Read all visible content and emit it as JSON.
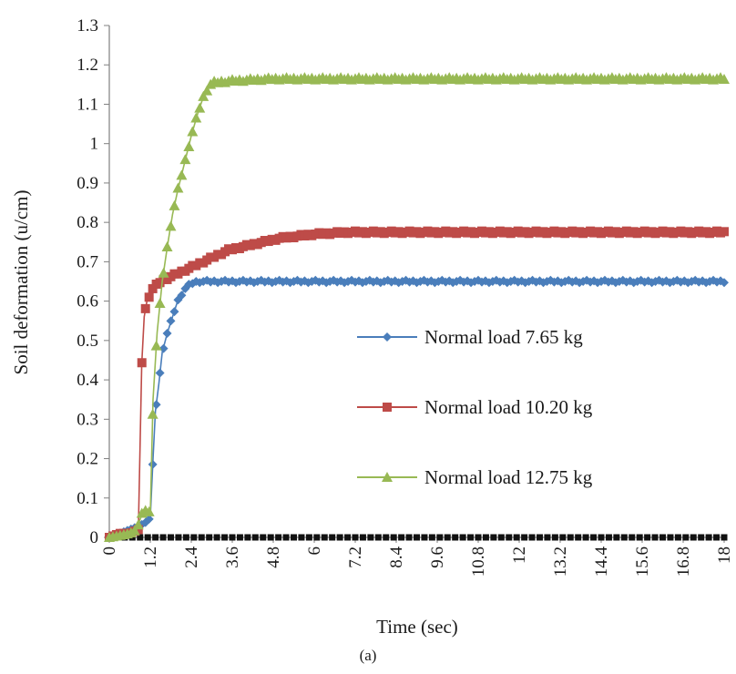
{
  "chart_data": {
    "type": "line",
    "title": "",
    "caption": "(a)",
    "xlabel": "Time (sec)",
    "ylabel": "Soil deformation (u/cm)",
    "xlim": [
      0,
      18
    ],
    "ylim": [
      0,
      1.3
    ],
    "x_ticks": [
      "0",
      "1.2",
      "2.4",
      "3.6",
      "4.8",
      "6",
      "7.2",
      "8.4",
      "9.6",
      "10.8",
      "12",
      "13.2",
      "14.4",
      "15.6",
      "16.8",
      "18"
    ],
    "y_ticks": [
      "0",
      "0.1",
      "0.2",
      "0.3",
      "0.4",
      "0.5",
      "0.6",
      "0.7",
      "0.8",
      "0.9",
      "1",
      "1.1",
      "1.2",
      "1.3"
    ],
    "grid": false,
    "legend_position": "center-right",
    "series": [
      {
        "name": "Normal load 7.65 kg",
        "color": "#4a7ebb",
        "marker": "diamond",
        "points": [
          [
            0,
            0
          ],
          [
            0.3,
            0.01
          ],
          [
            0.6,
            0.02
          ],
          [
            0.9,
            0.03
          ],
          [
            1.1,
            0.04
          ],
          [
            1.2,
            0.05
          ],
          [
            1.28,
            0.2
          ],
          [
            1.35,
            0.32
          ],
          [
            1.45,
            0.39
          ],
          [
            1.55,
            0.47
          ],
          [
            1.7,
            0.52
          ],
          [
            1.85,
            0.56
          ],
          [
            2.0,
            0.6
          ],
          [
            2.2,
            0.63
          ],
          [
            2.4,
            0.645
          ],
          [
            2.6,
            0.65
          ],
          [
            3.0,
            0.65
          ],
          [
            6.0,
            0.65
          ],
          [
            12.0,
            0.65
          ],
          [
            18.0,
            0.65
          ]
        ]
      },
      {
        "name": "Normal load 10.20 kg",
        "color": "#be4b48",
        "marker": "square",
        "points": [
          [
            0,
            0
          ],
          [
            0.3,
            0.01
          ],
          [
            0.6,
            0.01
          ],
          [
            0.85,
            0.02
          ],
          [
            0.95,
            0.44
          ],
          [
            1.02,
            0.56
          ],
          [
            1.1,
            0.6
          ],
          [
            1.25,
            0.63
          ],
          [
            1.5,
            0.65
          ],
          [
            2.0,
            0.67
          ],
          [
            2.5,
            0.69
          ],
          [
            3.0,
            0.71
          ],
          [
            3.5,
            0.73
          ],
          [
            4.0,
            0.74
          ],
          [
            4.5,
            0.75
          ],
          [
            5.0,
            0.76
          ],
          [
            5.5,
            0.765
          ],
          [
            6.0,
            0.77
          ],
          [
            7.0,
            0.775
          ],
          [
            18.0,
            0.775
          ]
        ]
      },
      {
        "name": "Normal load 12.75 kg",
        "color": "#98b954",
        "marker": "triangle",
        "points": [
          [
            0,
            0
          ],
          [
            0.3,
            0.005
          ],
          [
            0.6,
            0.01
          ],
          [
            0.8,
            0.02
          ],
          [
            1.0,
            0.07
          ],
          [
            1.1,
            0.07
          ],
          [
            1.2,
            0.06
          ],
          [
            1.28,
            0.35
          ],
          [
            1.4,
            0.52
          ],
          [
            1.55,
            0.65
          ],
          [
            1.7,
            0.74
          ],
          [
            1.85,
            0.82
          ],
          [
            2.0,
            0.88
          ],
          [
            2.2,
            0.95
          ],
          [
            2.4,
            1.02
          ],
          [
            2.6,
            1.08
          ],
          [
            2.8,
            1.13
          ],
          [
            3.0,
            1.155
          ],
          [
            3.6,
            1.16
          ],
          [
            4.8,
            1.165
          ],
          [
            6.0,
            1.165
          ],
          [
            12.0,
            1.165
          ],
          [
            18.0,
            1.165
          ]
        ]
      }
    ]
  }
}
